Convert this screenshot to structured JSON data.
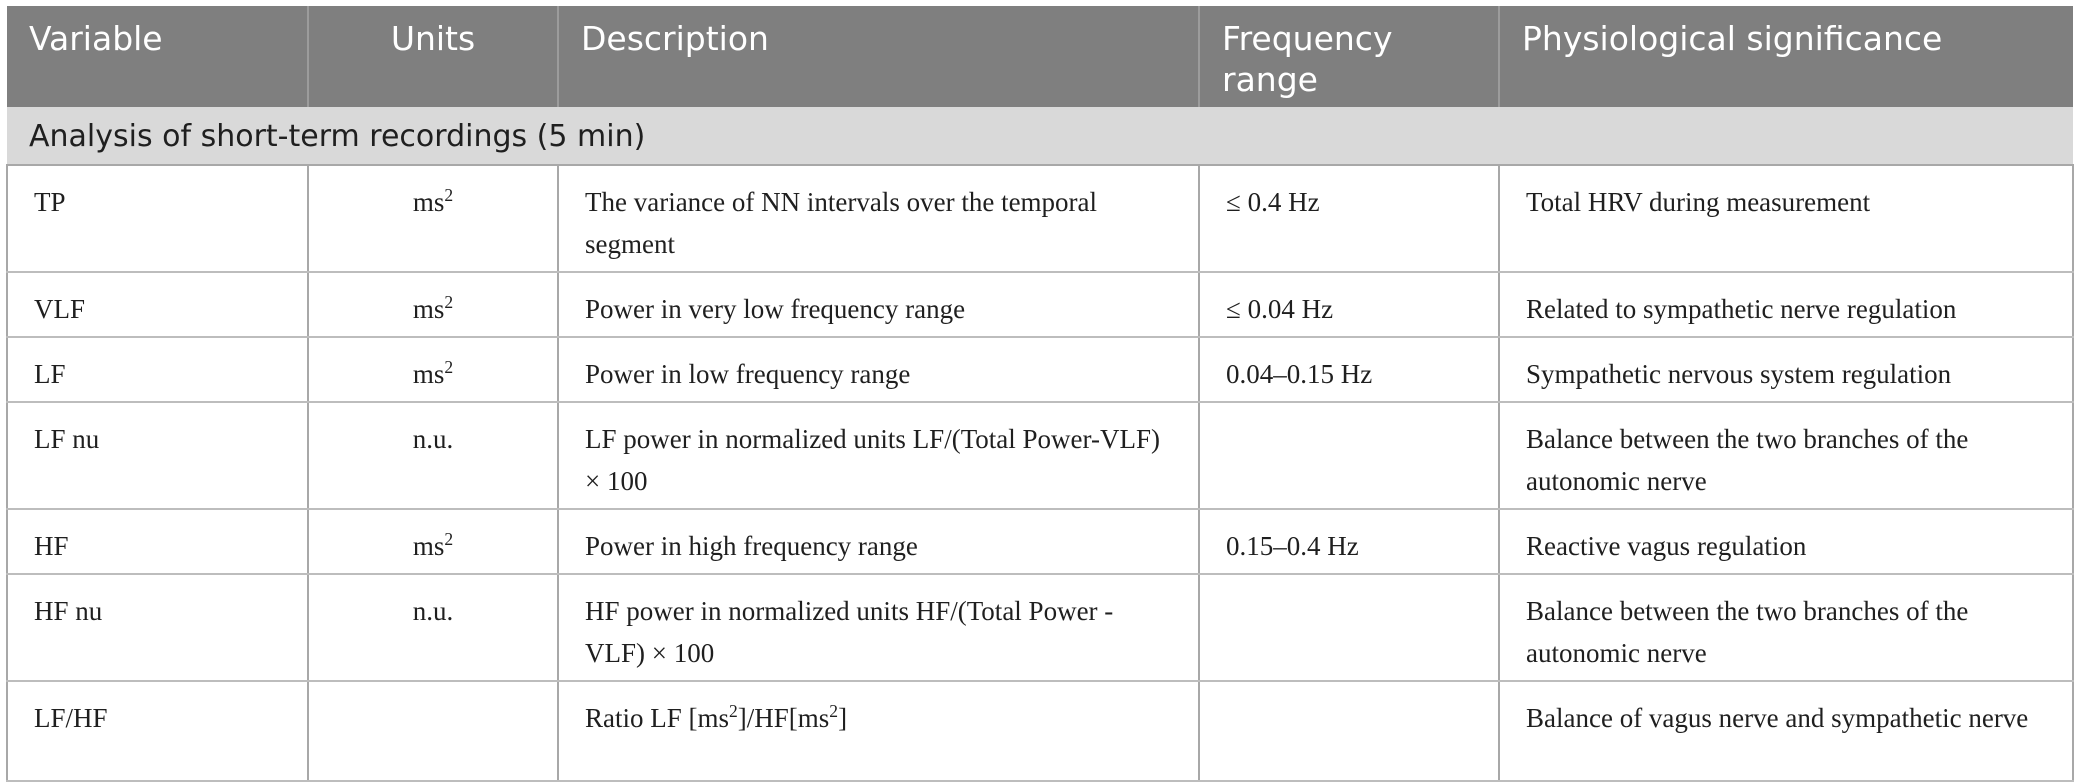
{
  "table": {
    "headers": [
      "Variable",
      "Units",
      "Description",
      "Frequency range",
      "Physiological significance"
    ],
    "section_title": "Analysis of short-term recordings (5 min)",
    "rows": [
      {
        "variable": "TP",
        "units": {
          "base": "ms",
          "sup": "2"
        },
        "description": [
          "The variance of NN intervals over the temporal segment"
        ],
        "frequency": "≤ 0.4 Hz",
        "significance": "Total HRV during measurement"
      },
      {
        "variable": "VLF",
        "units": {
          "base": "ms",
          "sup": "2"
        },
        "description": [
          "Power in very low frequency range"
        ],
        "frequency": "≤ 0.04 Hz",
        "significance": "Related to sympathetic nerve regulation"
      },
      {
        "variable": "LF",
        "units": {
          "base": "ms",
          "sup": "2"
        },
        "description": [
          "Power in low frequency range"
        ],
        "frequency": "0.04–0.15 Hz",
        "significance": "Sympathetic nervous system regulation"
      },
      {
        "variable": "LF nu",
        "units": {
          "base": "n.u.",
          "sup": ""
        },
        "description": [
          "LF power in normalized units LF/(Total Power-VLF) × 100"
        ],
        "frequency": "",
        "significance": "Balance between the two branches of the autonomic nerve"
      },
      {
        "variable": "HF",
        "units": {
          "base": "ms",
          "sup": "2"
        },
        "description": [
          "Power in high frequency range"
        ],
        "frequency": "0.15–0.4 Hz",
        "significance": "Reactive vagus regulation"
      },
      {
        "variable": "HF nu",
        "units": {
          "base": "n.u.",
          "sup": ""
        },
        "description": [
          "HF power in normalized units HF/(Total Power -VLF) × 100"
        ],
        "frequency": "",
        "significance": "Balance between the two branches of the autonomic nerve"
      },
      {
        "variable": "LF/HF",
        "units": {
          "base": "",
          "sup": ""
        },
        "description_parts": [
          "Ratio LF [ms",
          "2",
          "]/HF[ms",
          "2",
          "]"
        ],
        "frequency": "",
        "significance": "Balance of vagus nerve and sympathetic nerve"
      }
    ]
  }
}
